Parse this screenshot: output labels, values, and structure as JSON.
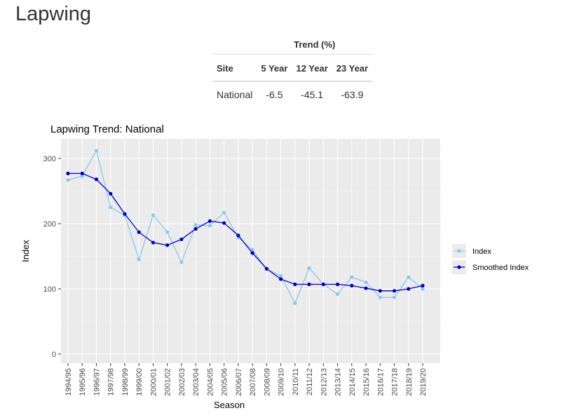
{
  "page_title": "Lapwing",
  "trend_table": {
    "group_header": "Trend (%)",
    "columns": [
      "Site",
      "5 Year",
      "12 Year",
      "23 Year"
    ],
    "rows": [
      [
        "National",
        "-6.5",
        "-45.1",
        "-63.9"
      ]
    ]
  },
  "chart_data": {
    "type": "line",
    "title": "Lapwing Trend: National",
    "xlabel": "Season",
    "ylabel": "Index",
    "ylim": [
      -12,
      331
    ],
    "yticks": [
      0,
      100,
      200,
      300
    ],
    "grid": true,
    "legend_position": "right",
    "categories": [
      "1994/95",
      "1995/96",
      "1996/97",
      "1997/98",
      "1998/99",
      "1999/00",
      "2000/01",
      "2001/02",
      "2002/03",
      "2003/04",
      "2004/05",
      "2005/06",
      "2006/07",
      "2007/08",
      "2008/09",
      "2009/10",
      "2010/11",
      "2011/12",
      "2012/13",
      "2013/14",
      "2014/15",
      "2015/16",
      "2016/17",
      "2017/18",
      "2018/19",
      "2019/20"
    ],
    "series": [
      {
        "name": "Index",
        "color": "#8cc8ec",
        "values": [
          267,
          273,
          312,
          225,
          213,
          145,
          213,
          187,
          141,
          198,
          197,
          217,
          179,
          160,
          130,
          120,
          78,
          132,
          107,
          92,
          118,
          110,
          87,
          87,
          118,
          100
        ]
      },
      {
        "name": "Smoothed Index",
        "color": "#0000cc",
        "values": [
          277,
          277,
          268,
          246,
          215,
          187,
          171,
          167,
          176,
          192,
          204,
          201,
          182,
          155,
          131,
          115,
          107,
          107,
          107,
          107,
          105,
          101,
          97,
          97,
          100,
          105
        ]
      }
    ]
  }
}
